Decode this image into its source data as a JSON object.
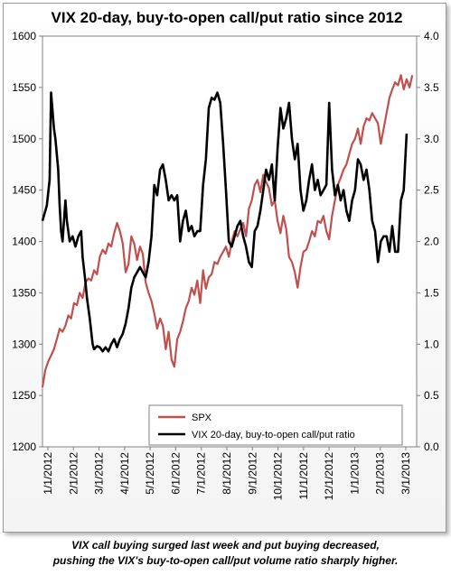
{
  "chart_data": {
    "type": "line",
    "title": "VIX 20-day, buy-to-open call/put ratio since 2012",
    "x_tick_labels": [
      "1/1/2012",
      "2/1/2012",
      "3/1/2012",
      "4/1/2012",
      "5/1/2012",
      "6/1/2012",
      "7/1/2012",
      "8/1/2012",
      "9/1/2012",
      "10/1/2012",
      "11/1/2012",
      "12/1/2012",
      "1/1/2013",
      "2/1/2013",
      "3/1/2013"
    ],
    "y_left": {
      "min": 1200,
      "max": 1600,
      "ticks": [
        "1200",
        "1250",
        "1300",
        "1350",
        "1400",
        "1450",
        "1500",
        "1550",
        "1600"
      ]
    },
    "y_right": {
      "min": 0,
      "max": 4,
      "ticks": [
        "0.0",
        "0.5",
        "1.0",
        "1.5",
        "2.0",
        "2.5",
        "3.0",
        "3.5",
        "4.0"
      ]
    },
    "grid": false,
    "legend_position": "bottom-right",
    "series": [
      {
        "name": "SPX",
        "axis": "left",
        "color": "#c0504d",
        "points": [
          [
            0,
            1258
          ],
          [
            2,
            1275
          ],
          [
            4,
            1283
          ],
          [
            6,
            1289
          ],
          [
            8,
            1295
          ],
          [
            10,
            1305
          ],
          [
            12,
            1315
          ],
          [
            14,
            1312
          ],
          [
            16,
            1318
          ],
          [
            18,
            1328
          ],
          [
            20,
            1325
          ],
          [
            22,
            1340
          ],
          [
            24,
            1338
          ],
          [
            26,
            1350
          ],
          [
            28,
            1345
          ],
          [
            30,
            1360
          ],
          [
            32,
            1364
          ],
          [
            34,
            1362
          ],
          [
            36,
            1372
          ],
          [
            38,
            1368
          ],
          [
            40,
            1385
          ],
          [
            42,
            1392
          ],
          [
            44,
            1388
          ],
          [
            46,
            1398
          ],
          [
            48,
            1395
          ],
          [
            50,
            1408
          ],
          [
            52,
            1418
          ],
          [
            54,
            1410
          ],
          [
            56,
            1398
          ],
          [
            58,
            1370
          ],
          [
            60,
            1378
          ],
          [
            62,
            1405
          ],
          [
            64,
            1398
          ],
          [
            66,
            1382
          ],
          [
            68,
            1395
          ],
          [
            70,
            1388
          ],
          [
            72,
            1360
          ],
          [
            74,
            1350
          ],
          [
            76,
            1342
          ],
          [
            78,
            1330
          ],
          [
            80,
            1315
          ],
          [
            82,
            1325
          ],
          [
            84,
            1318
          ],
          [
            86,
            1295
          ],
          [
            88,
            1312
          ],
          [
            90,
            1285
          ],
          [
            92,
            1278
          ],
          [
            94,
            1305
          ],
          [
            96,
            1312
          ],
          [
            98,
            1322
          ],
          [
            100,
            1335
          ],
          [
            102,
            1342
          ],
          [
            104,
            1355
          ],
          [
            106,
            1348
          ],
          [
            108,
            1362
          ],
          [
            110,
            1340
          ],
          [
            112,
            1372
          ],
          [
            114,
            1354
          ],
          [
            116,
            1365
          ],
          [
            118,
            1368
          ],
          [
            120,
            1380
          ],
          [
            122,
            1378
          ],
          [
            124,
            1385
          ],
          [
            126,
            1390
          ],
          [
            128,
            1395
          ],
          [
            130,
            1385
          ],
          [
            132,
            1400
          ],
          [
            134,
            1410
          ],
          [
            136,
            1405
          ],
          [
            138,
            1412
          ],
          [
            140,
            1418
          ],
          [
            142,
            1405
          ],
          [
            144,
            1432
          ],
          [
            146,
            1440
          ],
          [
            148,
            1455
          ],
          [
            150,
            1460
          ],
          [
            152,
            1448
          ],
          [
            154,
            1465
          ],
          [
            156,
            1458
          ],
          [
            158,
            1452
          ],
          [
            160,
            1435
          ],
          [
            162,
            1440
          ],
          [
            164,
            1420
          ],
          [
            166,
            1408
          ],
          [
            168,
            1425
          ],
          [
            170,
            1412
          ],
          [
            172,
            1385
          ],
          [
            174,
            1380
          ],
          [
            176,
            1370
          ],
          [
            178,
            1355
          ],
          [
            180,
            1375
          ],
          [
            182,
            1390
          ],
          [
            184,
            1392
          ],
          [
            186,
            1400
          ],
          [
            188,
            1410
          ],
          [
            190,
            1405
          ],
          [
            192,
            1420
          ],
          [
            194,
            1418
          ],
          [
            196,
            1425
          ],
          [
            198,
            1410
          ],
          [
            200,
            1402
          ],
          [
            202,
            1425
          ],
          [
            204,
            1440
          ],
          [
            206,
            1455
          ],
          [
            208,
            1462
          ],
          [
            210,
            1470
          ],
          [
            212,
            1475
          ],
          [
            214,
            1485
          ],
          [
            216,
            1495
          ],
          [
            218,
            1500
          ],
          [
            220,
            1510
          ],
          [
            222,
            1495
          ],
          [
            224,
            1512
          ],
          [
            226,
            1520
          ],
          [
            228,
            1518
          ],
          [
            230,
            1525
          ],
          [
            232,
            1520
          ],
          [
            234,
            1515
          ],
          [
            236,
            1495
          ],
          [
            238,
            1510
          ],
          [
            240,
            1525
          ],
          [
            242,
            1540
          ],
          [
            244,
            1548
          ],
          [
            246,
            1555
          ],
          [
            248,
            1552
          ],
          [
            250,
            1562
          ],
          [
            252,
            1548
          ],
          [
            254,
            1558
          ],
          [
            256,
            1550
          ],
          [
            258,
            1562
          ]
        ]
      },
      {
        "name": "VIX 20-day, buy-to-open call/put ratio",
        "axis": "right",
        "color": "#000000",
        "points": [
          [
            0,
            2.2
          ],
          [
            3,
            2.35
          ],
          [
            5,
            2.6
          ],
          [
            6,
            3.45
          ],
          [
            8,
            3.1
          ],
          [
            9,
            3.0
          ],
          [
            11,
            2.7
          ],
          [
            12,
            2.35
          ],
          [
            13,
            2.1
          ],
          [
            14,
            2.0
          ],
          [
            16,
            2.4
          ],
          [
            17,
            2.2
          ],
          [
            19,
            2.0
          ],
          [
            21,
            2.05
          ],
          [
            23,
            1.95
          ],
          [
            25,
            2.05
          ],
          [
            27,
            2.1
          ],
          [
            28,
            1.85
          ],
          [
            30,
            1.6
          ],
          [
            31,
            1.45
          ],
          [
            33,
            1.25
          ],
          [
            35,
            1.0
          ],
          [
            36,
            0.95
          ],
          [
            38,
            0.98
          ],
          [
            40,
            0.97
          ],
          [
            42,
            0.93
          ],
          [
            44,
            0.97
          ],
          [
            46,
            0.93
          ],
          [
            48,
            1.0
          ],
          [
            50,
            1.05
          ],
          [
            52,
            0.97
          ],
          [
            54,
            1.05
          ],
          [
            56,
            1.1
          ],
          [
            58,
            1.2
          ],
          [
            60,
            1.35
          ],
          [
            62,
            1.55
          ],
          [
            64,
            1.65
          ],
          [
            66,
            1.7
          ],
          [
            68,
            1.75
          ],
          [
            70,
            1.7
          ],
          [
            72,
            1.65
          ],
          [
            74,
            1.8
          ],
          [
            76,
            2.05
          ],
          [
            78,
            2.55
          ],
          [
            80,
            2.45
          ],
          [
            82,
            2.7
          ],
          [
            84,
            2.75
          ],
          [
            86,
            2.6
          ],
          [
            88,
            2.4
          ],
          [
            90,
            2.45
          ],
          [
            92,
            2.4
          ],
          [
            94,
            2.45
          ],
          [
            96,
            2.0
          ],
          [
            98,
            2.2
          ],
          [
            100,
            2.3
          ],
          [
            102,
            2.1
          ],
          [
            104,
            2.15
          ],
          [
            106,
            2.05
          ],
          [
            108,
            2.1
          ],
          [
            110,
            2.1
          ],
          [
            112,
            2.55
          ],
          [
            114,
            2.8
          ],
          [
            116,
            3.3
          ],
          [
            118,
            3.4
          ],
          [
            120,
            3.38
          ],
          [
            122,
            3.45
          ],
          [
            124,
            3.35
          ],
          [
            126,
            2.95
          ],
          [
            128,
            2.5
          ],
          [
            130,
            2.0
          ],
          [
            132,
            1.95
          ],
          [
            134,
            2.05
          ],
          [
            136,
            2.15
          ],
          [
            138,
            2.2
          ],
          [
            140,
            2.05
          ],
          [
            142,
            1.95
          ],
          [
            144,
            1.8
          ],
          [
            146,
            1.75
          ],
          [
            148,
            2.1
          ],
          [
            150,
            2.15
          ],
          [
            152,
            2.3
          ],
          [
            154,
            2.5
          ],
          [
            156,
            2.7
          ],
          [
            158,
            2.6
          ],
          [
            160,
            2.75
          ],
          [
            162,
            2.4
          ],
          [
            164,
            2.9
          ],
          [
            166,
            3.3
          ],
          [
            168,
            3.1
          ],
          [
            170,
            3.2
          ],
          [
            172,
            3.35
          ],
          [
            174,
            3.0
          ],
          [
            176,
            2.8
          ],
          [
            178,
            2.95
          ],
          [
            180,
            2.5
          ],
          [
            182,
            2.3
          ],
          [
            184,
            2.4
          ],
          [
            186,
            2.6
          ],
          [
            188,
            2.75
          ],
          [
            190,
            2.5
          ],
          [
            192,
            2.6
          ],
          [
            194,
            2.45
          ],
          [
            196,
            2.5
          ],
          [
            198,
            2.55
          ],
          [
            200,
            3.35
          ],
          [
            202,
            2.7
          ],
          [
            204,
            2.45
          ],
          [
            206,
            2.55
          ],
          [
            208,
            2.4
          ],
          [
            210,
            2.5
          ],
          [
            212,
            2.3
          ],
          [
            214,
            2.2
          ],
          [
            216,
            2.4
          ],
          [
            218,
            2.5
          ],
          [
            220,
            2.8
          ],
          [
            222,
            2.75
          ],
          [
            224,
            2.6
          ],
          [
            226,
            2.7
          ],
          [
            228,
            2.5
          ],
          [
            230,
            2.2
          ],
          [
            232,
            2.1
          ],
          [
            234,
            1.8
          ],
          [
            236,
            2.0
          ],
          [
            238,
            2.05
          ],
          [
            240,
            2.05
          ],
          [
            242,
            1.9
          ],
          [
            244,
            2.15
          ],
          [
            246,
            1.9
          ],
          [
            248,
            1.9
          ],
          [
            250,
            2.4
          ],
          [
            252,
            2.5
          ],
          [
            254,
            3.05
          ]
        ]
      }
    ],
    "x_domain": [
      0,
      261
    ]
  },
  "caption": {
    "line1": "VIX call buying surged last week and put buying decreased,",
    "line2": "pushing the VIX's buy-to-open  call/put volume ratio sharply higher."
  }
}
